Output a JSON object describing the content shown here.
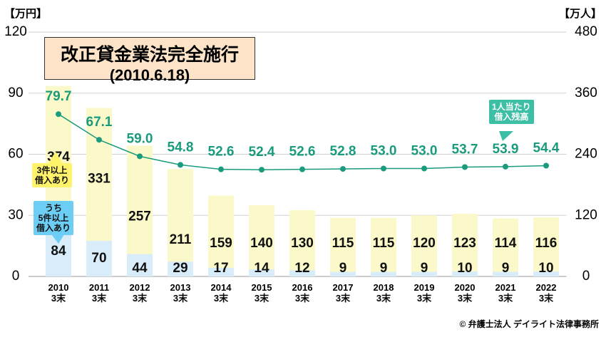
{
  "chart_data": {
    "type": "bar",
    "title": "改正貸金業法完全施行",
    "subtitle": "(2010.6.18)",
    "y_unit": "【万円】",
    "y2_unit": "【万人】",
    "source": "© 弁護士法人 デイライト法律事務所",
    "categories": [
      "2010\n3末",
      "2011\n3末",
      "2012\n3末",
      "2013\n3末",
      "2014\n3末",
      "2015\n3末",
      "2016\n3末",
      "2017\n3末",
      "2018\n3末",
      "2019\n3末",
      "2020\n3末",
      "2021\n3末",
      "2022\n3末"
    ],
    "series": [
      {
        "name": "3件以上\n借入あり",
        "type": "bar",
        "axis": "y2",
        "color": "#fbf9c9",
        "legend_color": "#fff36b",
        "values": [
          374,
          331,
          257,
          211,
          159,
          140,
          130,
          115,
          115,
          120,
          123,
          114,
          116
        ]
      },
      {
        "name": "うち\n5件以上\n借入あり",
        "type": "bar",
        "axis": "y2",
        "color": "#d8edf9",
        "legend_color": "#6ccdf5",
        "values": [
          84,
          70,
          44,
          29,
          17,
          14,
          12,
          9,
          9,
          9,
          10,
          9,
          10
        ]
      },
      {
        "name": "1人当たり\n借入残高",
        "type": "line",
        "axis": "y",
        "color": "#1a9b7e",
        "legend_color": "#3dbfa5",
        "values": [
          79.7,
          67.1,
          59.0,
          54.8,
          52.6,
          52.4,
          52.6,
          52.8,
          53.0,
          53.0,
          53.7,
          53.9,
          54.4
        ],
        "value_labels": [
          "79.7",
          "67.1",
          "59.0",
          "54.8",
          "52.6",
          "52.4",
          "52.6",
          "52.8",
          "53.0",
          "53.0",
          "53.7",
          "53.9",
          "54.4"
        ]
      }
    ],
    "ylim": [
      0,
      120
    ],
    "yticks": [
      0,
      30,
      60,
      90,
      120
    ],
    "y2lim": [
      0,
      480
    ],
    "y2ticks": [
      0,
      120,
      240,
      360,
      480
    ],
    "grid": true
  }
}
